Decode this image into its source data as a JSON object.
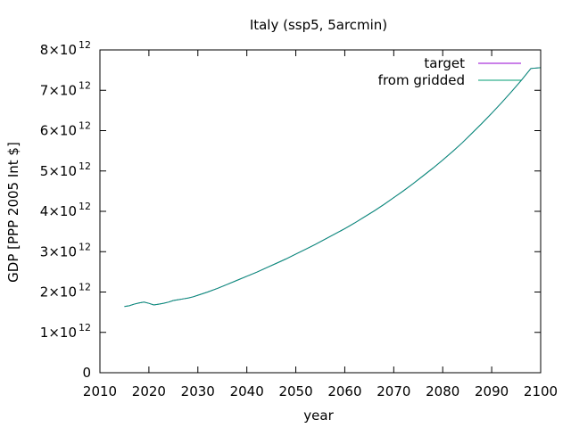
{
  "chart_data": {
    "type": "line",
    "title": "Italy (ssp5, 5arcmin)",
    "xlabel": "year",
    "ylabel": "GDP [PPP 2005 Int $]",
    "xlim": [
      2010,
      2100
    ],
    "ylim": [
      0,
      8000000000000.0
    ],
    "x_ticks": [
      2010,
      2020,
      2030,
      2040,
      2050,
      2060,
      2070,
      2080,
      2090,
      2100
    ],
    "x_tick_labels": [
      "2010",
      "2020",
      "2030",
      "2040",
      "2050",
      "2060",
      "2070",
      "2080",
      "2090",
      "2100"
    ],
    "y_ticks": [
      0,
      1000000000000.0,
      2000000000000.0,
      3000000000000.0,
      4000000000000.0,
      5000000000000.0,
      6000000000000.0,
      7000000000000.0,
      8000000000000.0
    ],
    "y_tick_labels": [
      {
        "mantissa": "0",
        "exp": ""
      },
      {
        "mantissa": "1×10",
        "exp": "12"
      },
      {
        "mantissa": "2×10",
        "exp": "12"
      },
      {
        "mantissa": "3×10",
        "exp": "12"
      },
      {
        "mantissa": "4×10",
        "exp": "12"
      },
      {
        "mantissa": "5×10",
        "exp": "12"
      },
      {
        "mantissa": "6×10",
        "exp": "12"
      },
      {
        "mantissa": "7×10",
        "exp": "12"
      },
      {
        "mantissa": "8×10",
        "exp": "12"
      }
    ],
    "grid": false,
    "legend_position": "top-right",
    "x": [
      2015,
      2016,
      2017,
      2018,
      2019,
      2020,
      2021,
      2022,
      2023,
      2024,
      2025,
      2026,
      2027,
      2028,
      2029,
      2030,
      2032,
      2034,
      2036,
      2038,
      2040,
      2042,
      2044,
      2046,
      2048,
      2050,
      2052,
      2054,
      2056,
      2058,
      2060,
      2062,
      2064,
      2066,
      2068,
      2070,
      2072,
      2074,
      2076,
      2078,
      2080,
      2082,
      2084,
      2086,
      2088,
      2090,
      2092,
      2094,
      2096,
      2098,
      2100
    ],
    "series": [
      {
        "name": "target",
        "color": "#9400d3",
        "values": [
          1640000000000.0,
          1660000000000.0,
          1700000000000.0,
          1730000000000.0,
          1750000000000.0,
          1720000000000.0,
          1680000000000.0,
          1700000000000.0,
          1720000000000.0,
          1750000000000.0,
          1790000000000.0,
          1810000000000.0,
          1830000000000.0,
          1850000000000.0,
          1880000000000.0,
          1920000000000.0,
          2000000000000.0,
          2090000000000.0,
          2190000000000.0,
          2290000000000.0,
          2390000000000.0,
          2490000000000.0,
          2600000000000.0,
          2710000000000.0,
          2820000000000.0,
          2940000000000.0,
          3060000000000.0,
          3180000000000.0,
          3310000000000.0,
          3440000000000.0,
          3570000000000.0,
          3710000000000.0,
          3860000000000.0,
          4010000000000.0,
          4170000000000.0,
          4340000000000.0,
          4510000000000.0,
          4690000000000.0,
          4880000000000.0,
          5070000000000.0,
          5270000000000.0,
          5480000000000.0,
          5700000000000.0,
          5940000000000.0,
          6180000000000.0,
          6430000000000.0,
          6690000000000.0,
          6960000000000.0,
          7240000000000.0,
          7540000000000.0,
          7560000000000.0
        ]
      },
      {
        "name": "from gridded",
        "color": "#009e73",
        "values": [
          1640000000000.0,
          1660000000000.0,
          1700000000000.0,
          1730000000000.0,
          1750000000000.0,
          1720000000000.0,
          1680000000000.0,
          1700000000000.0,
          1720000000000.0,
          1750000000000.0,
          1790000000000.0,
          1810000000000.0,
          1830000000000.0,
          1850000000000.0,
          1880000000000.0,
          1920000000000.0,
          2000000000000.0,
          2090000000000.0,
          2190000000000.0,
          2290000000000.0,
          2390000000000.0,
          2490000000000.0,
          2600000000000.0,
          2710000000000.0,
          2820000000000.0,
          2940000000000.0,
          3060000000000.0,
          3180000000000.0,
          3310000000000.0,
          3440000000000.0,
          3570000000000.0,
          3710000000000.0,
          3860000000000.0,
          4010000000000.0,
          4170000000000.0,
          4340000000000.0,
          4510000000000.0,
          4690000000000.0,
          4880000000000.0,
          5070000000000.0,
          5270000000000.0,
          5480000000000.0,
          5700000000000.0,
          5940000000000.0,
          6180000000000.0,
          6430000000000.0,
          6690000000000.0,
          6960000000000.0,
          7240000000000.0,
          7540000000000.0,
          7560000000000.0
        ]
      }
    ]
  }
}
